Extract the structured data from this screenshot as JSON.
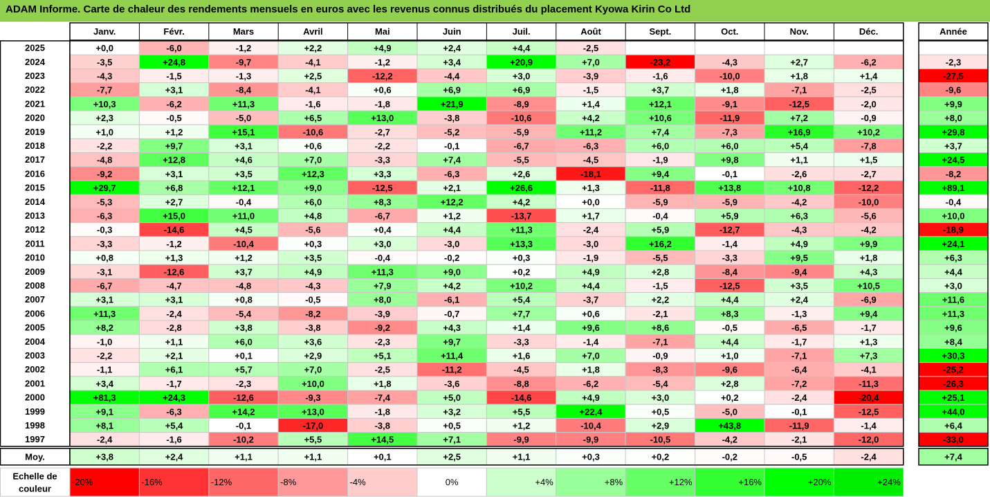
{
  "title": "ADAM Informe. Carte de chaleur des rendements mensuels en euros avec les revenus connus distribués du placement Kyowa Kirin Co Ltd",
  "chart_data": {
    "type": "heatmap",
    "title": "ADAM Informe. Carte de chaleur des rendements mensuels en euros avec les revenus connus distribués du placement Kyowa Kirin Co Ltd",
    "months": [
      "Janv.",
      "Févr.",
      "Mars",
      "Avril",
      "Mai",
      "Juin",
      "Juil.",
      "Août",
      "Sept.",
      "Oct.",
      "Nov.",
      "Déc."
    ],
    "year_header": "Année",
    "rows": [
      {
        "year": "2025",
        "values": [
          "+0,0",
          "-6,0",
          "-1,2",
          "+2,2",
          "+4,9",
          "+2,4",
          "+4,4",
          "-2,5",
          "",
          "",
          "",
          ""
        ],
        "annual": ""
      },
      {
        "year": "2024",
        "values": [
          "-3,5",
          "+24,8",
          "-9,7",
          "-4,1",
          "-1,2",
          "+3,4",
          "+20,9",
          "+7,0",
          "-23,2",
          "-4,3",
          "+2,7",
          "-6,2"
        ],
        "annual": "-2,3"
      },
      {
        "year": "2023",
        "values": [
          "-4,3",
          "-1,5",
          "-1,3",
          "+2,5",
          "-12,2",
          "-4,4",
          "+3,0",
          "-3,9",
          "-1,6",
          "-10,0",
          "+1,8",
          "+1,4"
        ],
        "annual": "-27,5"
      },
      {
        "year": "2022",
        "values": [
          "-7,7",
          "+3,1",
          "-8,4",
          "-4,1",
          "+0,6",
          "+6,9",
          "+6,9",
          "-1,5",
          "+3,7",
          "+1,8",
          "-7,1",
          "-2,5"
        ],
        "annual": "-9,6"
      },
      {
        "year": "2021",
        "values": [
          "+10,3",
          "-6,2",
          "+11,3",
          "-1,6",
          "-1,8",
          "+21,9",
          "-8,9",
          "+1,4",
          "+12,1",
          "-9,1",
          "-12,5",
          "-2,0"
        ],
        "annual": "+9,9"
      },
      {
        "year": "2020",
        "values": [
          "+2,3",
          "-0,5",
          "-5,0",
          "+6,5",
          "+13,0",
          "-3,8",
          "-10,6",
          "+4,2",
          "+10,6",
          "-11,9",
          "+7,2",
          "-0,9"
        ],
        "annual": "+8,0"
      },
      {
        "year": "2019",
        "values": [
          "+1,0",
          "+1,2",
          "+15,1",
          "-10,6",
          "-2,7",
          "-5,2",
          "-5,9",
          "+11,2",
          "+7,4",
          "-7,3",
          "+16,9",
          "+10,2"
        ],
        "annual": "+29,8"
      },
      {
        "year": "2018",
        "values": [
          "-2,2",
          "+9,7",
          "+3,1",
          "+0,6",
          "-2,2",
          "-0,1",
          "-6,7",
          "-6,3",
          "+6,0",
          "+6,0",
          "+5,4",
          "-7,8"
        ],
        "annual": "+3,7"
      },
      {
        "year": "2017",
        "values": [
          "-4,8",
          "+12,8",
          "+4,6",
          "+7,0",
          "-3,3",
          "+7,4",
          "-5,5",
          "-4,5",
          "-1,9",
          "+9,8",
          "+1,1",
          "+1,5"
        ],
        "annual": "+24,5"
      },
      {
        "year": "2016",
        "values": [
          "-9,2",
          "+3,1",
          "+3,5",
          "+12,3",
          "+3,3",
          "-6,3",
          "+2,6",
          "-18,1",
          "+9,4",
          "-0,1",
          "-2,6",
          "-2,7"
        ],
        "annual": "-8,2"
      },
      {
        "year": "2015",
        "values": [
          "+29,7",
          "+6,8",
          "+12,1",
          "+9,0",
          "-12,5",
          "+2,1",
          "+26,6",
          "+1,3",
          "-11,8",
          "+13,8",
          "+10,8",
          "-12,2"
        ],
        "annual": "+89,1"
      },
      {
        "year": "2014",
        "values": [
          "-5,3",
          "+2,7",
          "-0,4",
          "+6,0",
          "+8,3",
          "+12,2",
          "+4,2",
          "+0,0",
          "-5,9",
          "-5,9",
          "-4,2",
          "-10,0"
        ],
        "annual": "-0,4"
      },
      {
        "year": "2013",
        "values": [
          "-6,3",
          "+15,0",
          "+11,0",
          "+4,8",
          "-6,7",
          "+1,2",
          "-13,7",
          "+1,7",
          "-0,4",
          "+5,9",
          "+6,3",
          "-5,6"
        ],
        "annual": "+10,0"
      },
      {
        "year": "2012",
        "values": [
          "-0,3",
          "-14,6",
          "+4,5",
          "-5,6",
          "+0,4",
          "+4,4",
          "+11,3",
          "-2,4",
          "+5,9",
          "-12,7",
          "-4,3",
          "-4,2"
        ],
        "annual": "-18,9"
      },
      {
        "year": "2011",
        "values": [
          "-3,3",
          "-1,2",
          "-10,4",
          "+0,3",
          "+3,0",
          "-3,0",
          "+13,3",
          "-3,0",
          "+16,2",
          "-1,4",
          "+4,9",
          "+9,9"
        ],
        "annual": "+24,1"
      },
      {
        "year": "2010",
        "values": [
          "+0,8",
          "+1,3",
          "+1,2",
          "+3,5",
          "-0,4",
          "-0,2",
          "+0,3",
          "-1,9",
          "-5,5",
          "-3,3",
          "+9,5",
          "+1,8"
        ],
        "annual": "+6,3"
      },
      {
        "year": "2009",
        "values": [
          "-3,1",
          "-12,6",
          "+3,7",
          "+4,9",
          "+11,3",
          "+9,0",
          "+0,2",
          "+4,9",
          "+2,8",
          "-8,4",
          "-9,4",
          "+4,3"
        ],
        "annual": "+4,4"
      },
      {
        "year": "2008",
        "values": [
          "-6,7",
          "-4,7",
          "-4,8",
          "-4,3",
          "+7,9",
          "+4,2",
          "+10,2",
          "+4,4",
          "-1,5",
          "-12,5",
          "+3,5",
          "+10,5"
        ],
        "annual": "+3,0"
      },
      {
        "year": "2007",
        "values": [
          "+3,1",
          "+3,1",
          "+0,8",
          "-0,5",
          "+8,0",
          "-6,1",
          "+5,4",
          "-3,7",
          "+2,2",
          "+4,4",
          "+2,4",
          "-6,9"
        ],
        "annual": "+11,6"
      },
      {
        "year": "2006",
        "values": [
          "+11,3",
          "-2,4",
          "-5,4",
          "-8,2",
          "-3,9",
          "-0,7",
          "+7,7",
          "+0,6",
          "-2,1",
          "+8,3",
          "-1,3",
          "+9,4"
        ],
        "annual": "+11,3"
      },
      {
        "year": "2005",
        "values": [
          "+8,2",
          "-2,8",
          "+3,8",
          "-3,8",
          "-9,2",
          "+4,3",
          "+1,4",
          "+9,6",
          "+8,6",
          "-0,5",
          "-6,5",
          "-1,7"
        ],
        "annual": "+9,6"
      },
      {
        "year": "2004",
        "values": [
          "-1,0",
          "+1,1",
          "+6,0",
          "+3,6",
          "-2,3",
          "+9,7",
          "-3,3",
          "-1,4",
          "-7,1",
          "+4,4",
          "-1,7",
          "+1,3"
        ],
        "annual": "+8,4"
      },
      {
        "year": "2003",
        "values": [
          "-2,2",
          "+2,1",
          "+0,1",
          "+2,9",
          "+5,1",
          "+11,4",
          "+1,6",
          "+7,0",
          "-0,9",
          "+1,0",
          "-7,1",
          "+7,3"
        ],
        "annual": "+30,3"
      },
      {
        "year": "2002",
        "values": [
          "-1,1",
          "+6,1",
          "+5,7",
          "+7,0",
          "-2,5",
          "-11,2",
          "-4,5",
          "+1,8",
          "-8,3",
          "-9,6",
          "-6,4",
          "-4,1"
        ],
        "annual": "-25,2"
      },
      {
        "year": "2001",
        "values": [
          "+3,4",
          "-1,7",
          "-2,3",
          "+10,0",
          "+1,8",
          "-3,6",
          "-8,8",
          "-6,2",
          "-5,4",
          "+2,8",
          "-7,2",
          "-11,3"
        ],
        "annual": "-26,3"
      },
      {
        "year": "2000",
        "values": [
          "+81,3",
          "+24,3",
          "-12,6",
          "-9,3",
          "-7,4",
          "+5,0",
          "-14,6",
          "+4,9",
          "+3,0",
          "+0,2",
          "-2,4",
          "-20,4"
        ],
        "annual": "+25,1"
      },
      {
        "year": "1999",
        "values": [
          "+9,1",
          "-6,3",
          "+14,2",
          "+13,0",
          "-1,8",
          "+3,2",
          "+5,5",
          "+22,4",
          "+0,5",
          "-5,0",
          "-0,1",
          "-12,5"
        ],
        "annual": "+44,0"
      },
      {
        "year": "1998",
        "values": [
          "+8,1",
          "+5,4",
          "-0,1",
          "-17,0",
          "-3,8",
          "+0,5",
          "+1,2",
          "-10,4",
          "+2,9",
          "+43,8",
          "-11,9",
          "-1,4"
        ],
        "annual": "+6,4"
      },
      {
        "year": "1997",
        "values": [
          "-2,4",
          "-1,6",
          "-10,2",
          "+5,5",
          "+14,5",
          "+7,1",
          "-9,9",
          "-9,9",
          "-10,5",
          "-4,2",
          "-2,1",
          "-12,0"
        ],
        "annual": "-33,0"
      }
    ],
    "average": {
      "label": "Moy.",
      "values": [
        "+3,8",
        "+2,4",
        "+1,1",
        "+1,1",
        "+0,1",
        "+2,5",
        "+1,1",
        "+0,3",
        "+0,2",
        "-0,2",
        "-0,5",
        "-2,4"
      ],
      "annual": "+7,4"
    },
    "scale": {
      "label_line1": "Echelle de",
      "label_line2": "couleur",
      "stops": [
        {
          "label": "-20%",
          "value": -20,
          "color": "#ff0000"
        },
        {
          "label": "-16%",
          "value": -16,
          "color": "#ff3333"
        },
        {
          "label": "-12%",
          "value": -12,
          "color": "#ff6666"
        },
        {
          "label": "-8%",
          "value": -8,
          "color": "#ff9999"
        },
        {
          "label": "-4%",
          "value": -4,
          "color": "#ffcccc"
        },
        {
          "label": "0%",
          "value": 0,
          "color": "#ffffff"
        },
        {
          "label": "+4%",
          "value": 4,
          "color": "#ccffcc"
        },
        {
          "label": "+8%",
          "value": 8,
          "color": "#99ff99"
        },
        {
          "label": "+12%",
          "value": 12,
          "color": "#66ff66"
        },
        {
          "label": "+16%",
          "value": 16,
          "color": "#33ff33"
        },
        {
          "label": "+20%",
          "value": 20,
          "color": "#00ff00"
        },
        {
          "label": "+24%",
          "value": 24,
          "color": "#00ee00"
        }
      ]
    },
    "colors": {
      "title_bg": "#92d050",
      "grid": "#c0c0c0",
      "border": "#000000"
    }
  }
}
